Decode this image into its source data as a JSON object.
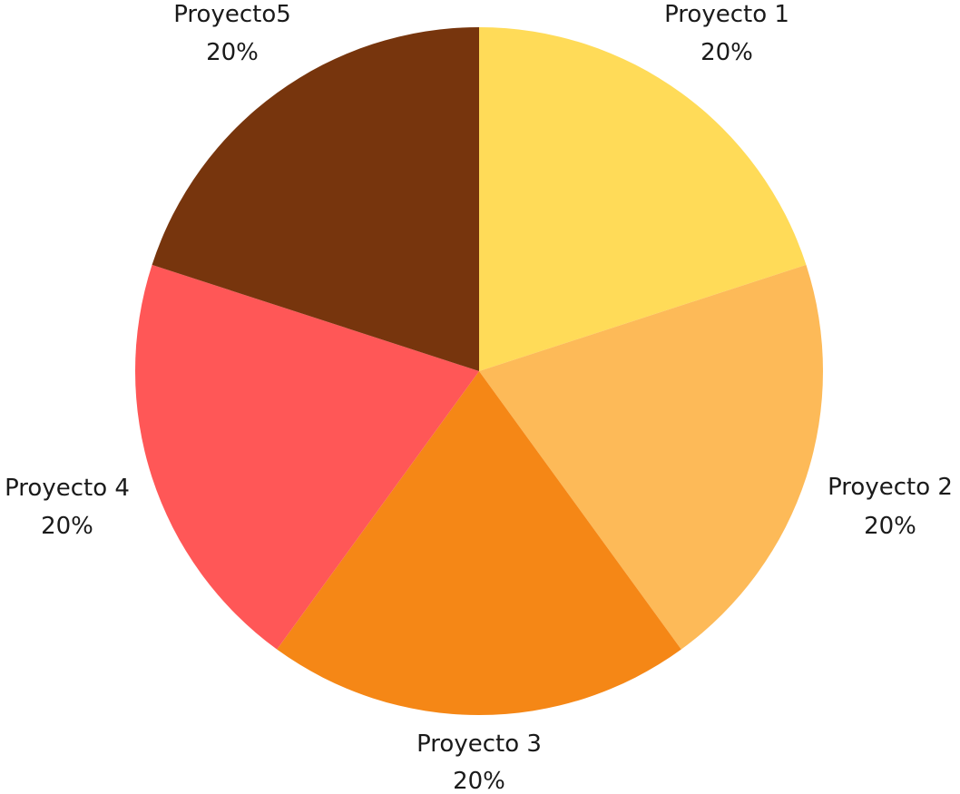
{
  "chart_data": {
    "type": "pie",
    "start_angle_deg": 90,
    "direction": "clockwise",
    "slices": [
      {
        "name": "Proyecto 1",
        "value": 20,
        "label": "20%",
        "color": "#FFDB58"
      },
      {
        "name": "Proyecto 2",
        "value": 20,
        "label": "20%",
        "color": "#FDBA58"
      },
      {
        "name": "Proyecto 3",
        "value": 20,
        "label": "20%",
        "color": "#F58716"
      },
      {
        "name": "Proyecto 4",
        "value": 20,
        "label": "20%",
        "color": "#FF5757"
      },
      {
        "name": "Proyecto5",
        "value": 20,
        "label": "20%",
        "color": "#77350D"
      }
    ]
  }
}
